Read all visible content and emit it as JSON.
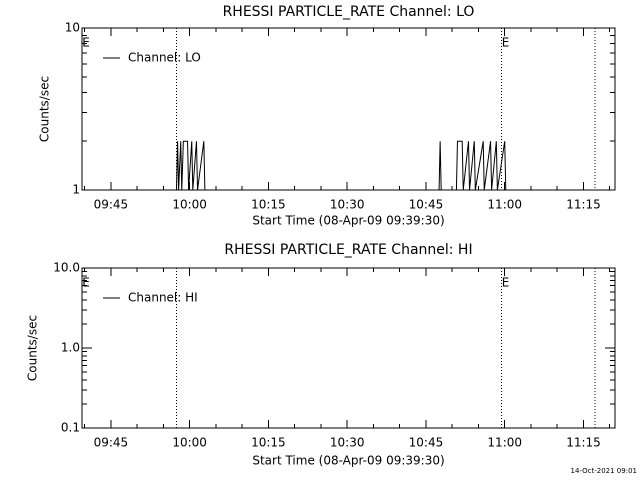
{
  "chart_data": [
    {
      "type": "line",
      "title": "RHESSI PARTICLE_RATE Channel: LO",
      "xlabel": "Start Time (08-Apr-09 09:39:30)",
      "ylabel": "Counts/sec",
      "xlim": [
        579.5,
        681
      ],
      "xticks": [
        {
          "value": 585,
          "label": "09:45"
        },
        {
          "value": 600,
          "label": "10:00"
        },
        {
          "value": 615,
          "label": "10:15"
        },
        {
          "value": 630,
          "label": "10:30"
        },
        {
          "value": 645,
          "label": "10:45"
        },
        {
          "value": 660,
          "label": "11:00"
        },
        {
          "value": 675,
          "label": "11:15"
        }
      ],
      "ylim": [
        1,
        10
      ],
      "yticks": [
        1,
        10
      ],
      "log_y": true,
      "legend": "upper left",
      "vlines": [
        597.5,
        659.4,
        677.2
      ],
      "annotations": [
        {
          "text": "E",
          "x": 579.5
        },
        {
          "text": "E",
          "x": 659.4
        }
      ],
      "series": [
        {
          "name": "Channel: LO",
          "color": "#000000",
          "x": [
            597.5,
            597.7,
            597.9,
            598.3,
            598.5,
            598.8,
            599.6,
            599.8,
            600.4,
            600.6,
            601.3,
            601.5,
            602.7,
            602.9,
            null,
            647.5,
            647.7,
            647.9,
            650.8,
            651.0,
            651.9,
            652.1,
            653.1,
            653.3,
            654.2,
            654.4,
            655.9,
            656.1,
            657.3,
            657.5,
            658.4,
            658.6,
            660.0,
            660.2
          ],
          "values": [
            1,
            2,
            1,
            2,
            1,
            2,
            2,
            1,
            2,
            1,
            2,
            1,
            2,
            1,
            null,
            1,
            2,
            1,
            1,
            2,
            2,
            1,
            2,
            1,
            2,
            1,
            2,
            1,
            2,
            1,
            2,
            1,
            2,
            1
          ]
        }
      ]
    },
    {
      "type": "line",
      "title": "RHESSI PARTICLE_RATE Channel: HI",
      "xlabel": "Start Time (08-Apr-09 09:39:30)",
      "ylabel": "Counts/sec",
      "xlim": [
        579.5,
        681
      ],
      "xticks": [
        {
          "value": 585,
          "label": "09:45"
        },
        {
          "value": 600,
          "label": "10:00"
        },
        {
          "value": 615,
          "label": "10:15"
        },
        {
          "value": 630,
          "label": "10:30"
        },
        {
          "value": 645,
          "label": "10:45"
        },
        {
          "value": 660,
          "label": "11:00"
        },
        {
          "value": 675,
          "label": "11:15"
        }
      ],
      "ylim": [
        0.1,
        10
      ],
      "yticks": [
        0.1,
        {
          "value": 1,
          "label": "1.0"
        },
        {
          "value": 10,
          "label": "10.0"
        }
      ],
      "log_y": true,
      "legend": "upper left",
      "vlines": [
        597.5,
        659.4,
        677.2
      ],
      "annotations": [
        {
          "text": "E",
          "x": 579.5
        },
        {
          "text": "E",
          "x": 659.4
        }
      ],
      "series": [
        {
          "name": "Channel: HI",
          "color": "#000000",
          "x": [],
          "values": []
        }
      ]
    }
  ],
  "footer": "14-Oct-2021 09:01"
}
